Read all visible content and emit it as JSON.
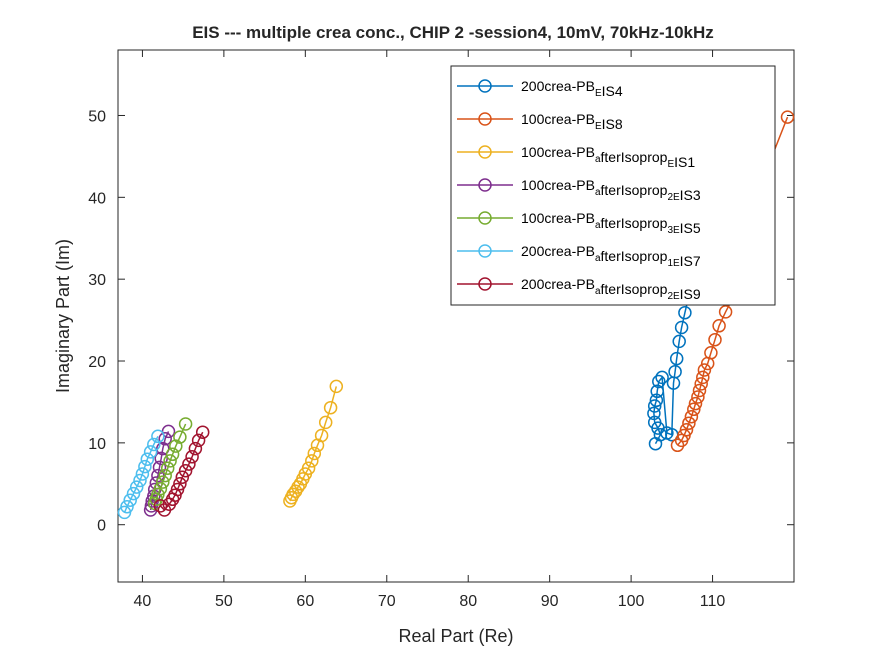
{
  "chart_data": {
    "type": "line",
    "title": "EIS --- multiple crea conc., CHIP 2 -session4, 10mV, 70kHz-10kHz",
    "xlabel": "Real Part (Re)",
    "ylabel": "Imaginary Part (Im)",
    "xlim": [
      37,
      120
    ],
    "ylim": [
      -7,
      58
    ],
    "x_ticks": [
      40,
      50,
      60,
      70,
      80,
      90,
      100,
      110
    ],
    "y_ticks": [
      0,
      10,
      20,
      30,
      40,
      50
    ],
    "x_tick_labels": [
      "40",
      "50",
      "60",
      "70",
      "80",
      "90",
      "100",
      "110"
    ],
    "y_tick_labels": [
      "0",
      "10",
      "20",
      "30",
      "40",
      "50"
    ],
    "grid": false,
    "legend_position": "top-right",
    "marker": "open-circle",
    "series": [
      {
        "name": "200crea-PB_EIS4",
        "label_parts": [
          {
            "t": "200crea-PB"
          },
          {
            "t": "E",
            "sub": true
          },
          {
            "t": "IS4"
          }
        ],
        "color": "#0072BD",
        "x": [
          103.0,
          103.6,
          103.3,
          102.9,
          102.8,
          102.9,
          103.1,
          103.2,
          103.4,
          103.8,
          104.4,
          105.0,
          105.2,
          105.4,
          105.6,
          105.9,
          106.2,
          106.6,
          107.0,
          107.6,
          108.3,
          109.2
        ],
        "y": [
          9.9,
          11.0,
          11.8,
          12.5,
          13.6,
          14.5,
          15.2,
          16.3,
          17.5,
          18.0,
          11.2,
          11.0,
          17.3,
          18.7,
          20.3,
          22.4,
          24.1,
          25.9,
          27.6,
          29.5,
          31.5,
          33.5
        ]
      },
      {
        "name": "100crea-PB_EIS8",
        "label_parts": [
          {
            "t": "100crea-PB"
          },
          {
            "t": "E",
            "sub": true
          },
          {
            "t": "IS8"
          }
        ],
        "color": "#D95319",
        "x": [
          105.7,
          106.2,
          106.5,
          106.8,
          107.1,
          107.4,
          107.7,
          107.9,
          108.2,
          108.4,
          108.6,
          108.8,
          109.0,
          109.4,
          109.8,
          110.3,
          110.8,
          111.6,
          112.6,
          113.8,
          116.5,
          119.2
        ],
        "y": [
          9.7,
          10.3,
          10.9,
          11.6,
          12.4,
          13.2,
          14.1,
          14.8,
          15.6,
          16.4,
          17.2,
          18.0,
          18.9,
          19.7,
          21.0,
          22.6,
          24.3,
          26.0,
          27.9,
          30.2,
          43.0,
          49.8
        ]
      },
      {
        "name": "100crea-PB_afterIsoprop_EIS1",
        "label_parts": [
          {
            "t": "100crea-PB"
          },
          {
            "t": "a",
            "sub": true
          },
          {
            "t": "fterIsoprop"
          },
          {
            "t": "E",
            "sub": true
          },
          {
            "t": "IS1"
          }
        ],
        "color": "#EDB120",
        "x": [
          58.1,
          58.3,
          58.5,
          58.8,
          59.1,
          59.4,
          59.7,
          60.0,
          60.4,
          60.8,
          61.1,
          61.5,
          62.0,
          62.5,
          63.1,
          63.8
        ],
        "y": [
          2.9,
          3.3,
          3.7,
          4.1,
          4.6,
          5.0,
          5.6,
          6.2,
          6.9,
          7.8,
          8.7,
          9.7,
          10.9,
          12.5,
          14.3,
          16.9
        ]
      },
      {
        "name": "100crea-PB_afterIsoprop_2EIS3",
        "label_parts": [
          {
            "t": "100crea-PB"
          },
          {
            "t": "a",
            "sub": true
          },
          {
            "t": "fterIsoprop"
          },
          {
            "t": "2E",
            "sub": true
          },
          {
            "t": "IS3"
          }
        ],
        "color": "#7E2F8E",
        "x": [
          41.0,
          41.1,
          41.2,
          41.4,
          41.5,
          41.7,
          41.9,
          42.1,
          42.3,
          42.5,
          42.8,
          43.2
        ],
        "y": [
          1.8,
          2.3,
          2.9,
          3.5,
          4.3,
          5.1,
          6.0,
          7.0,
          8.1,
          9.3,
          10.5,
          11.4
        ]
      },
      {
        "name": "100crea-PB_afterIsoprop_3EIS5",
        "label_parts": [
          {
            "t": "100crea-PB"
          },
          {
            "t": "a",
            "sub": true
          },
          {
            "t": "fterIsoprop"
          },
          {
            "t": "3E",
            "sub": true
          },
          {
            "t": "IS5"
          }
        ],
        "color": "#77AC30",
        "x": [
          41.5,
          41.7,
          41.9,
          42.2,
          42.5,
          42.8,
          43.1,
          43.4,
          43.7,
          44.1,
          44.6,
          45.3
        ],
        "y": [
          2.6,
          3.1,
          3.7,
          4.4,
          5.2,
          6.0,
          6.9,
          7.8,
          8.6,
          9.6,
          10.7,
          12.3
        ]
      },
      {
        "name": "200crea-PB_afterIsoprop_1EIS7",
        "label_parts": [
          {
            "t": "200crea-PB"
          },
          {
            "t": "a",
            "sub": true
          },
          {
            "t": "fterIsoprop"
          },
          {
            "t": "1E",
            "sub": true
          },
          {
            "t": "IS7"
          }
        ],
        "color": "#4DBEEE",
        "x": [
          37.8,
          38.1,
          38.5,
          38.9,
          39.3,
          39.7,
          40.0,
          40.3,
          40.6,
          41.0,
          41.4,
          41.9
        ],
        "y": [
          1.5,
          2.2,
          3.0,
          3.8,
          4.6,
          5.4,
          6.2,
          7.1,
          8.0,
          8.9,
          9.8,
          10.8
        ]
      },
      {
        "name": "200crea-PB_afterIsoprop_2EIS9",
        "label_parts": [
          {
            "t": "200crea-PB"
          },
          {
            "t": "a",
            "sub": true
          },
          {
            "t": "fterIsoprop"
          },
          {
            "t": "2E",
            "sub": true
          },
          {
            "t": "IS9"
          }
        ],
        "color": "#A2142F",
        "x": [
          42.2,
          42.7,
          43.3,
          43.7,
          44.0,
          44.3,
          44.6,
          44.9,
          45.3,
          45.7,
          46.1,
          46.5,
          46.9,
          47.4
        ],
        "y": [
          2.3,
          1.8,
          2.5,
          3.1,
          3.6,
          4.3,
          5.0,
          5.8,
          6.6,
          7.4,
          8.3,
          9.3,
          10.3,
          11.3
        ]
      }
    ]
  }
}
